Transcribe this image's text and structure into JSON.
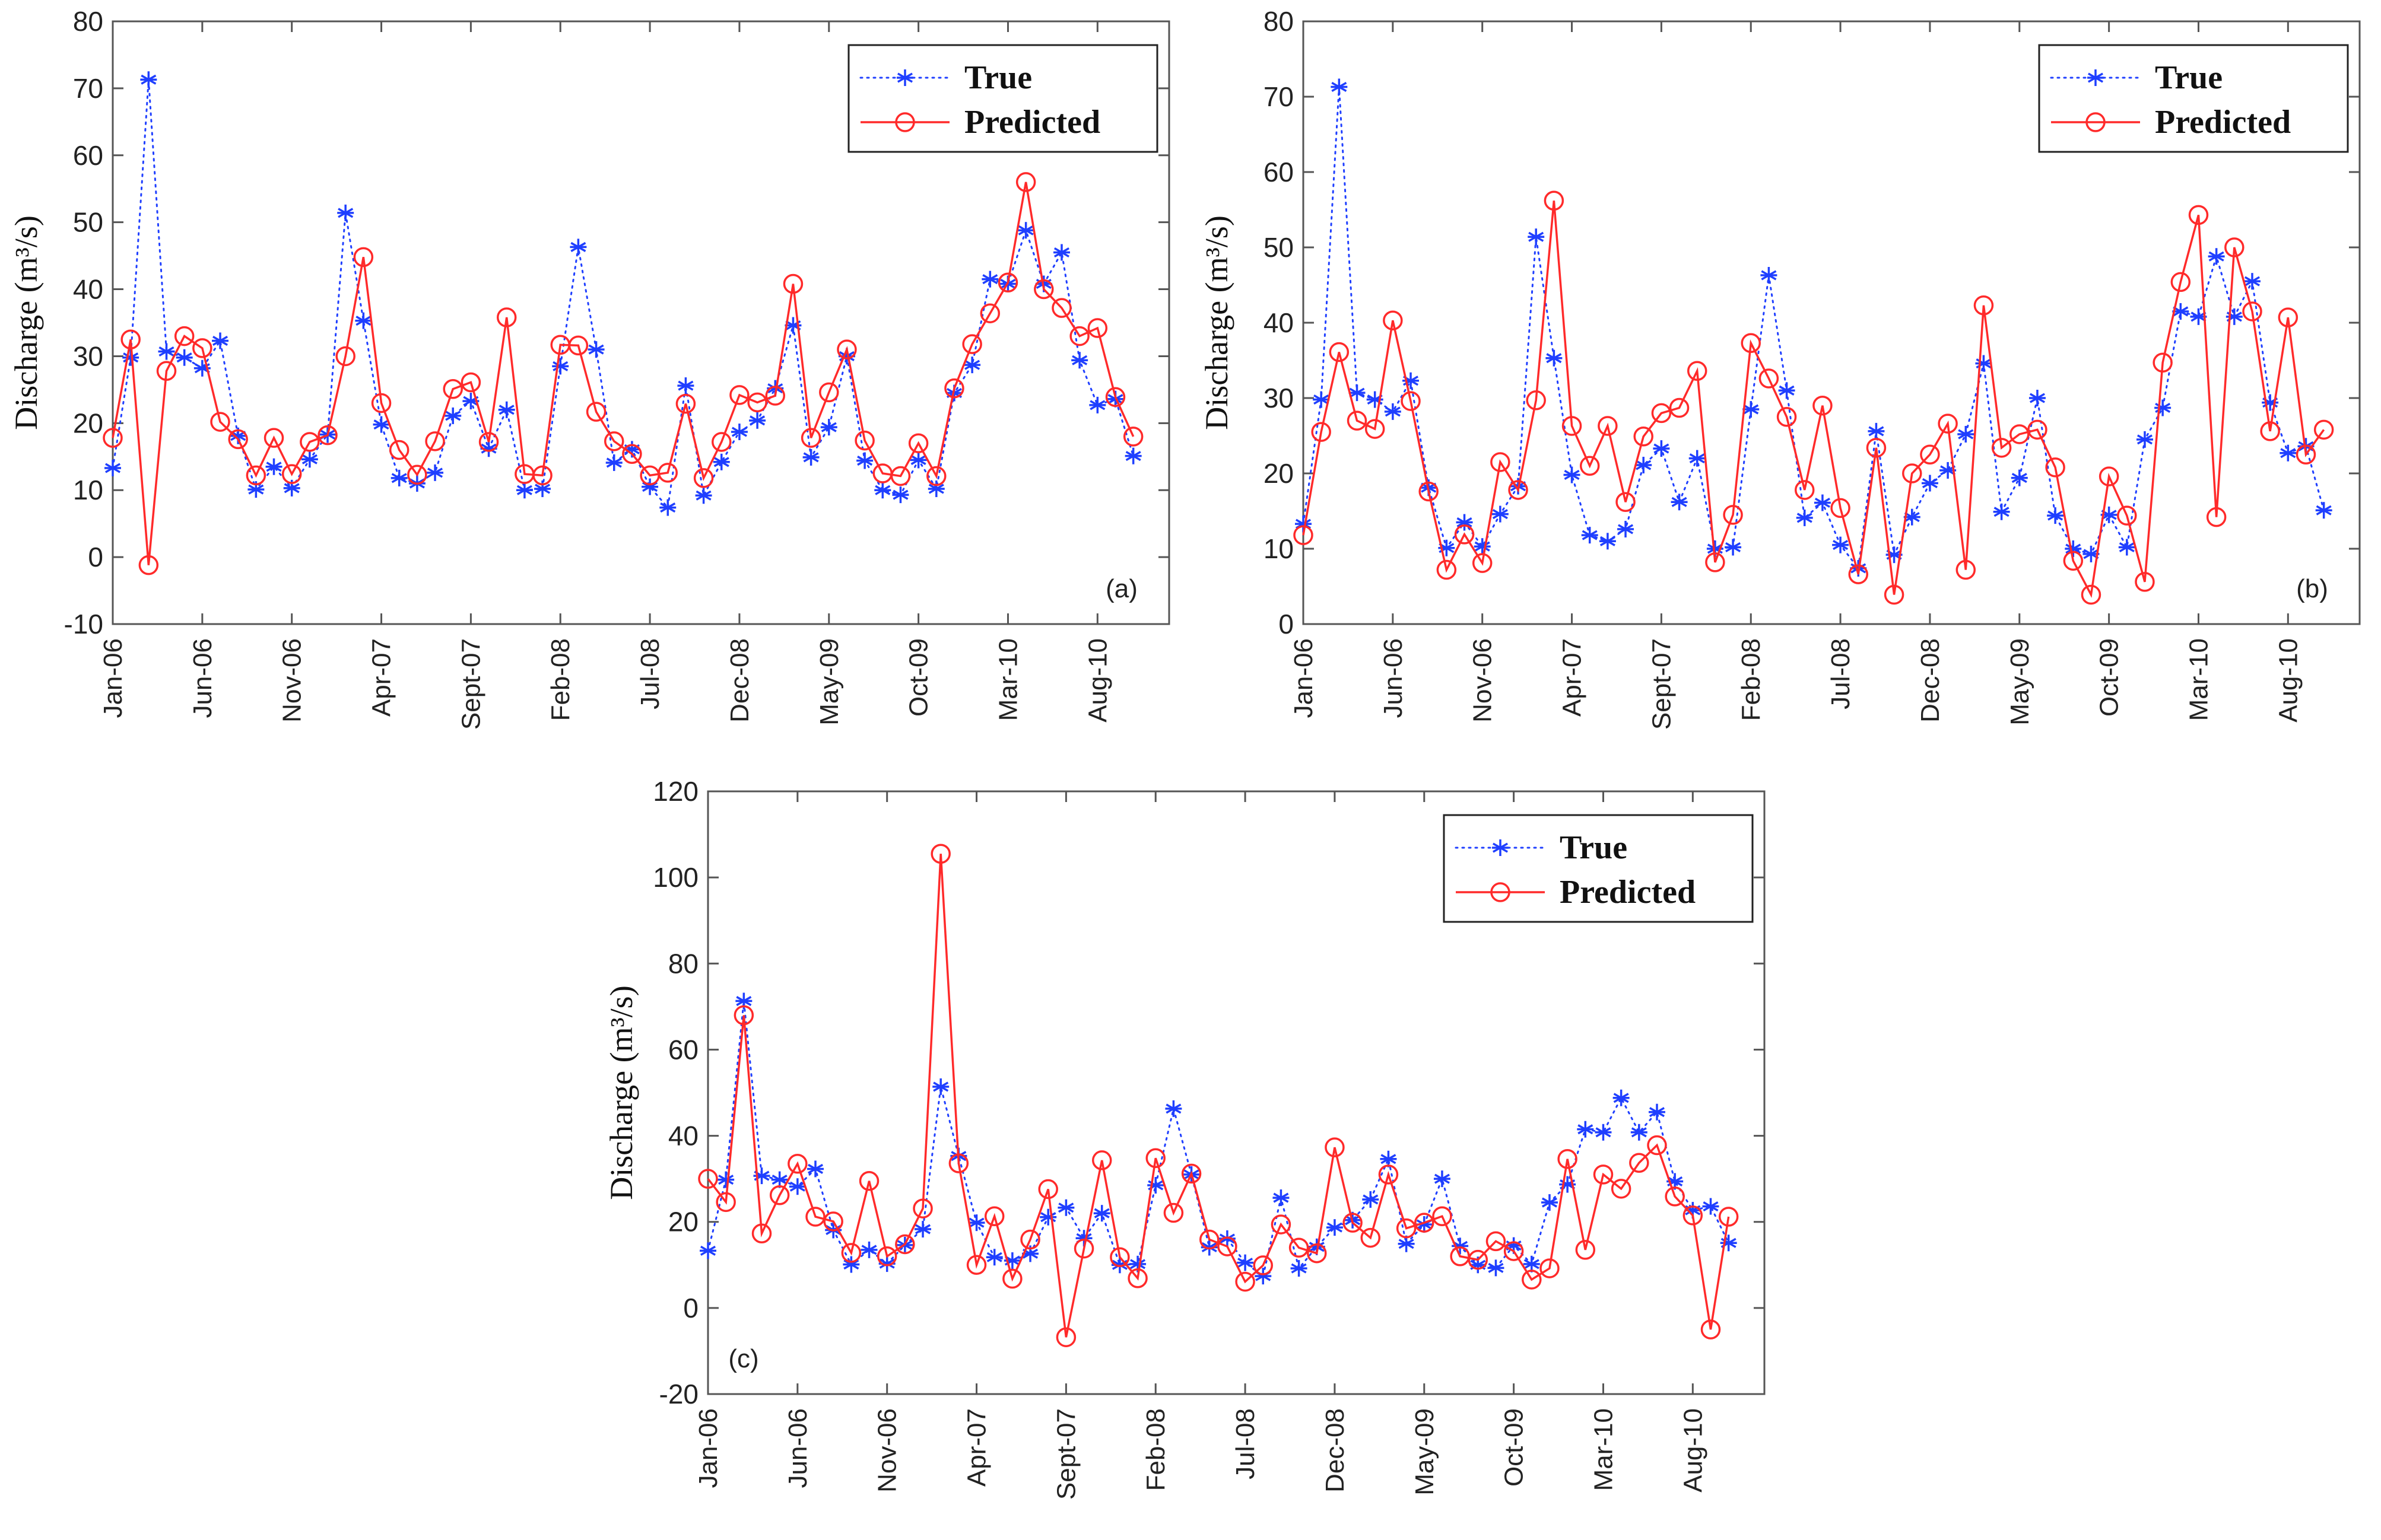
{
  "colors": {
    "true_series": "#1f3fff",
    "predicted_series": "#ff2a2a",
    "axis": "#555555",
    "background": "#ffffff"
  },
  "chart_data": [
    {
      "type": "line",
      "panel_label": "(a)",
      "ylabel": "Discharge (m³/s)",
      "xlabel": "",
      "ylim": [
        -10,
        80
      ],
      "yticks": [
        -10,
        0,
        10,
        20,
        30,
        40,
        50,
        60,
        70,
        80
      ],
      "xlim": [
        0,
        59
      ],
      "xtick_positions": [
        0,
        5,
        10,
        15,
        20,
        25,
        30,
        35,
        40,
        45,
        50,
        55
      ],
      "xtick_labels": [
        "Jan-06",
        "Jun-06",
        "Nov-06",
        "Apr-07",
        "Sept-07",
        "Feb-08",
        "Jul-08",
        "Dec-08",
        "May-09",
        "Oct-09",
        "Mar-10",
        "Aug-10"
      ],
      "legend": {
        "position": "top-right",
        "entries": [
          "True",
          "Predicted"
        ]
      },
      "series": [
        {
          "name": "True",
          "style": "dotted-star",
          "values": [
            13.3,
            29.8,
            71.3,
            30.7,
            29.8,
            28.2,
            32.3,
            18.1,
            10.1,
            13.5,
            10.3,
            14.6,
            18.3,
            51.4,
            35.3,
            19.8,
            11.8,
            11.0,
            12.6,
            21.1,
            23.3,
            16.2,
            22.0,
            10.0,
            10.2,
            28.5,
            46.3,
            31.0,
            14.1,
            16.1,
            10.5,
            7.4,
            25.6,
            9.2,
            14.2,
            18.7,
            20.4,
            25.2,
            34.6,
            14.9,
            19.4,
            30.0,
            14.4,
            10.0,
            9.3,
            14.5,
            10.2,
            24.5,
            28.7,
            41.5,
            40.8,
            48.8,
            40.8,
            45.5,
            29.4,
            22.7,
            23.6,
            15.1
          ]
        },
        {
          "name": "Predicted",
          "style": "solid-circle",
          "values": [
            17.8,
            32.5,
            -1.2,
            27.8,
            33.0,
            31.2,
            20.2,
            17.6,
            12.2,
            17.8,
            12.4,
            17.2,
            18.2,
            30.0,
            44.8,
            23.0,
            16.0,
            12.3,
            17.3,
            25.1,
            26.1,
            17.2,
            35.8,
            12.4,
            12.2,
            31.7,
            31.6,
            21.7,
            17.3,
            15.4,
            12.2,
            12.6,
            22.9,
            11.8,
            17.2,
            24.2,
            23.1,
            24.1,
            40.8,
            17.8,
            24.6,
            31.0,
            17.4,
            12.5,
            12.1,
            17.0,
            12.1,
            25.2,
            31.8,
            36.4,
            41.0,
            56.0,
            40.0,
            37.2,
            33.0,
            34.2,
            23.9,
            18.0
          ]
        }
      ]
    },
    {
      "type": "line",
      "panel_label": "(b)",
      "ylabel": "Discharge (m³/s)",
      "xlabel": "",
      "ylim": [
        0,
        80
      ],
      "yticks": [
        0,
        10,
        20,
        30,
        40,
        50,
        60,
        70,
        80
      ],
      "xlim": [
        0,
        59
      ],
      "xtick_positions": [
        0,
        5,
        10,
        15,
        20,
        25,
        30,
        35,
        40,
        45,
        50,
        55
      ],
      "xtick_labels": [
        "Jan-06",
        "Jun-06",
        "Nov-06",
        "Apr-07",
        "Sept-07",
        "Feb-08",
        "Jul-08",
        "Dec-08",
        "May-09",
        "Oct-09",
        "Mar-10",
        "Aug-10"
      ],
      "legend": {
        "position": "top-right",
        "entries": [
          "True",
          "Predicted"
        ]
      },
      "series": [
        {
          "name": "True",
          "style": "dotted-star",
          "values": [
            13.3,
            29.8,
            71.3,
            30.7,
            29.8,
            28.2,
            32.3,
            18.1,
            10.1,
            13.5,
            10.3,
            14.6,
            18.3,
            51.4,
            35.3,
            19.8,
            11.8,
            11.0,
            12.6,
            21.1,
            23.3,
            16.2,
            22.0,
            10.0,
            10.2,
            28.5,
            46.3,
            31.0,
            14.1,
            16.1,
            10.5,
            7.4,
            25.6,
            9.2,
            14.2,
            18.7,
            20.4,
            25.2,
            34.6,
            14.9,
            19.4,
            30.0,
            14.4,
            10.0,
            9.3,
            14.5,
            10.2,
            24.5,
            28.7,
            41.5,
            40.8,
            48.8,
            40.8,
            45.5,
            29.4,
            22.7,
            23.6,
            15.1
          ]
        },
        {
          "name": "Predicted",
          "style": "solid-circle",
          "values": [
            11.8,
            25.5,
            36.1,
            27.0,
            25.9,
            40.3,
            29.6,
            17.6,
            7.2,
            11.9,
            8.1,
            21.5,
            17.8,
            29.7,
            56.2,
            26.3,
            21.0,
            26.3,
            16.2,
            24.9,
            28.0,
            28.7,
            33.6,
            8.2,
            14.5,
            37.3,
            32.6,
            27.5,
            17.8,
            29.0,
            15.4,
            6.6,
            23.4,
            3.9,
            20.0,
            22.5,
            26.6,
            7.2,
            42.3,
            23.4,
            25.2,
            25.8,
            20.8,
            8.4,
            3.9,
            19.6,
            14.4,
            5.6,
            34.7,
            45.4,
            54.3,
            14.2,
            50.0,
            41.5,
            25.6,
            40.7,
            22.5,
            25.8
          ]
        }
      ]
    },
    {
      "type": "line",
      "panel_label": "(c)",
      "ylabel": "Discharge (m³/s)",
      "xlabel": "",
      "ylim": [
        -20,
        120
      ],
      "yticks": [
        -20,
        0,
        20,
        40,
        60,
        80,
        100,
        120
      ],
      "xlim": [
        0,
        59
      ],
      "xtick_positions": [
        0,
        5,
        10,
        15,
        20,
        25,
        30,
        35,
        40,
        45,
        50,
        55
      ],
      "xtick_labels": [
        "Jan-06",
        "Jun-06",
        "Nov-06",
        "Apr-07",
        "Sept-07",
        "Feb-08",
        "Jul-08",
        "Dec-08",
        "May-09",
        "Oct-09",
        "Mar-10",
        "Aug-10"
      ],
      "legend": {
        "position": "top-right",
        "entries": [
          "True",
          "Predicted"
        ]
      },
      "series": [
        {
          "name": "True",
          "style": "dotted-star",
          "values": [
            13.3,
            29.8,
            71.3,
            30.7,
            29.8,
            28.2,
            32.3,
            18.1,
            10.1,
            13.5,
            10.3,
            14.6,
            18.3,
            51.4,
            35.3,
            19.8,
            11.8,
            11.0,
            12.6,
            21.1,
            23.3,
            16.2,
            22.0,
            10.0,
            10.2,
            28.5,
            46.3,
            31.0,
            14.1,
            16.1,
            10.5,
            7.4,
            25.6,
            9.2,
            14.2,
            18.7,
            20.4,
            25.2,
            34.6,
            14.9,
            19.4,
            30.0,
            14.4,
            10.0,
            9.3,
            14.5,
            10.2,
            24.5,
            28.7,
            41.5,
            40.8,
            48.8,
            40.8,
            45.5,
            29.4,
            22.7,
            23.6,
            15.1
          ]
        },
        {
          "name": "Predicted",
          "style": "solid-circle",
          "values": [
            30.0,
            24.6,
            68.0,
            17.3,
            26.2,
            33.5,
            21.2,
            20.1,
            12.8,
            29.5,
            12.0,
            14.8,
            23.1,
            105.5,
            33.6,
            10.0,
            21.3,
            6.8,
            15.9,
            27.6,
            -6.8,
            13.8,
            34.3,
            11.8,
            6.9,
            34.8,
            22.1,
            31.2,
            15.9,
            14.3,
            6.1,
            9.9,
            19.4,
            14.0,
            12.7,
            37.3,
            19.8,
            16.3,
            31.0,
            18.5,
            19.8,
            21.3,
            12.0,
            11.2,
            15.5,
            13.2,
            6.6,
            9.2,
            34.6,
            13.5,
            31.0,
            27.7,
            33.7,
            37.8,
            25.9,
            21.5,
            -5.0,
            21.2
          ]
        }
      ]
    }
  ]
}
